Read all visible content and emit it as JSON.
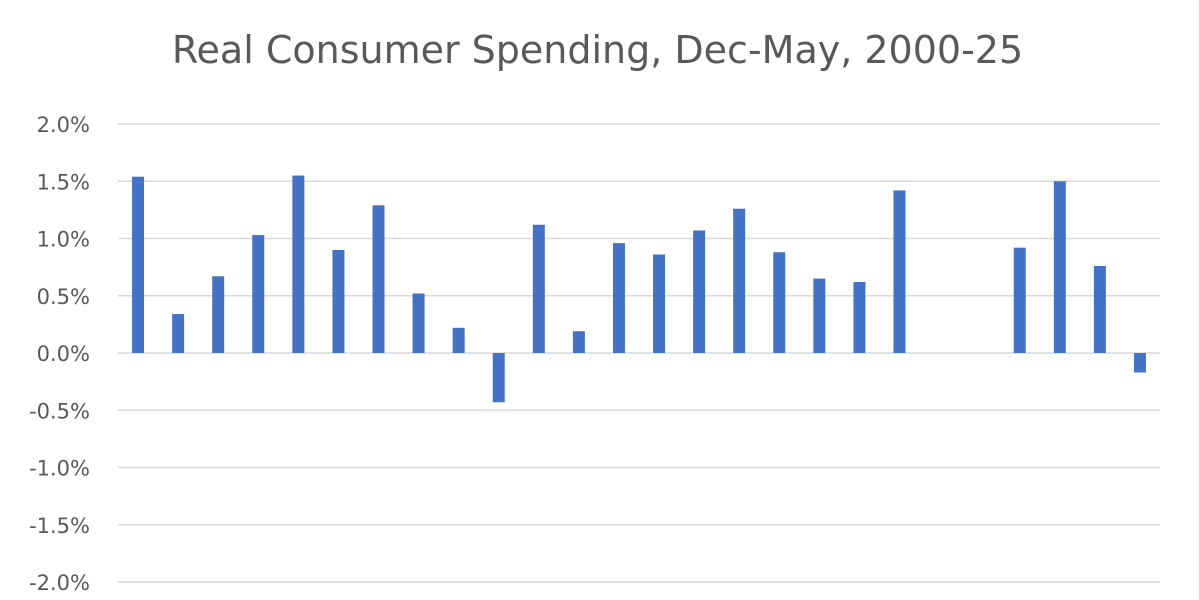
{
  "chart_data": {
    "type": "bar",
    "title": "Real Consumer Spending, Dec-May, 2000-25",
    "xlabel": "",
    "ylabel": "",
    "ylim": [
      -2.0,
      2.0
    ],
    "yticks": [
      2.0,
      1.5,
      1.0,
      0.5,
      0.0,
      -0.5,
      -1.0,
      -1.5,
      -2.0
    ],
    "ytick_labels": [
      "2.0%",
      "1.5%",
      "1.0%",
      "0.5%",
      "0.0%",
      "-0.5%",
      "-1.0%",
      "-1.5%",
      "-2.0%"
    ],
    "grid": true,
    "legend": "none",
    "bar_color": "#4472c4",
    "values": [
      1.54,
      0.34,
      0.67,
      1.03,
      1.55,
      0.9,
      1.29,
      0.52,
      0.22,
      -0.43,
      1.12,
      0.19,
      0.96,
      0.86,
      1.07,
      1.26,
      0.88,
      0.65,
      0.62,
      1.42,
      null,
      null,
      0.92,
      1.5,
      0.76,
      -0.17
    ]
  }
}
